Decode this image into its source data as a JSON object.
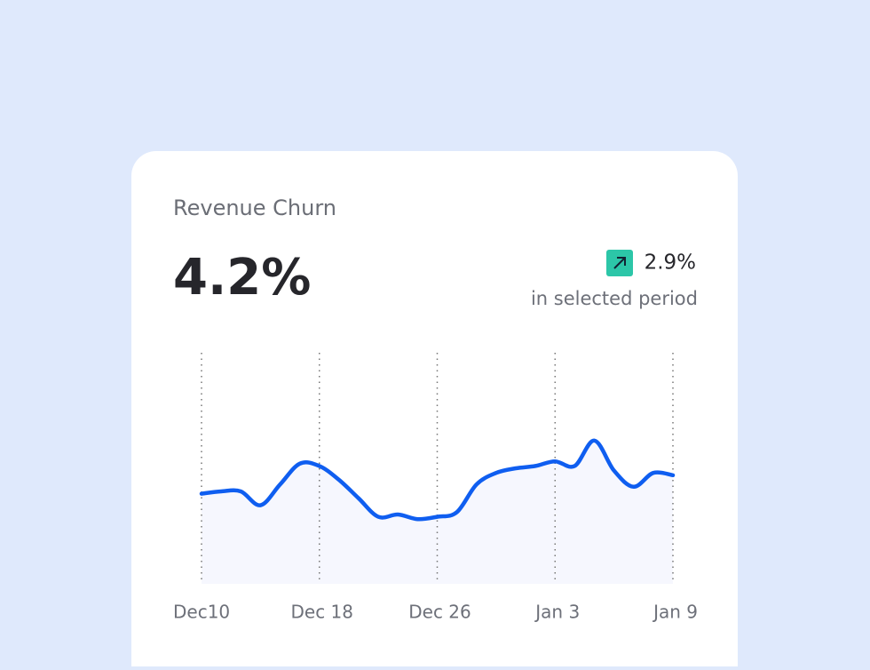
{
  "card": {
    "title": "Revenue Churn",
    "value": "4.2%",
    "change": "2.9%",
    "caption": "in selected period"
  },
  "chart_data": {
    "type": "line",
    "categories": [
      "Dec10",
      null,
      null,
      null,
      null,
      null,
      "Dec 18",
      null,
      null,
      null,
      null,
      null,
      "Dec 26",
      null,
      null,
      null,
      null,
      null,
      "Jan 3",
      null,
      null,
      null,
      null,
      null,
      "Jan 9"
    ],
    "series": [
      {
        "color": "#0f5ef0",
        "values": [
          3.9,
          4.0,
          4.0,
          3.4,
          4.3,
          5.2,
          5.1,
          4.5,
          3.7,
          2.9,
          3.0,
          2.8,
          2.9,
          3.1,
          4.3,
          4.8,
          5.0,
          5.1,
          5.3,
          5.1,
          6.2,
          4.9,
          4.2,
          4.8,
          4.7
        ]
      }
    ],
    "ylim": [
      0,
      10
    ],
    "grid": true,
    "area_color": "#f6f7fe"
  }
}
